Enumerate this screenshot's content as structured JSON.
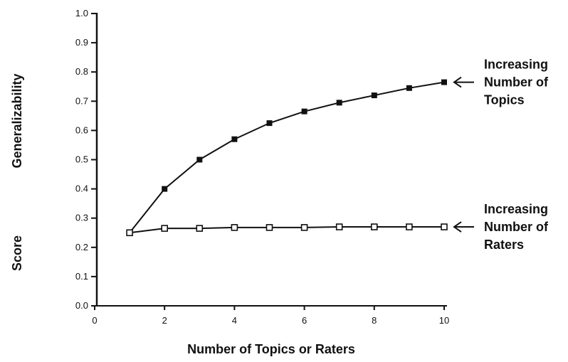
{
  "chart_data": {
    "type": "line",
    "title": "",
    "xlabel": "Number of Topics or Raters",
    "ylabel_parts": [
      "Score",
      "Generalizability"
    ],
    "xlim": [
      0,
      10
    ],
    "ylim": [
      0,
      1.0
    ],
    "x_ticks": [
      "0",
      "2",
      "4",
      "6",
      "8",
      "10"
    ],
    "y_ticks": [
      "0.0",
      "0.1",
      "0.2",
      "0.3",
      "0.4",
      "0.5",
      "0.6",
      "0.7",
      "0.8",
      "0.9",
      "1.0"
    ],
    "grid": false,
    "legend": "none",
    "x": [
      1,
      2,
      3,
      4,
      5,
      6,
      7,
      8,
      9,
      10
    ],
    "series": [
      {
        "name": "Increasing Number of Topics",
        "label_lines": [
          "Increasing",
          "Number of",
          "Topics"
        ],
        "values": [
          0.25,
          0.4,
          0.5,
          0.57,
          0.625,
          0.665,
          0.695,
          0.72,
          0.745,
          0.765
        ],
        "marker": "filled-square",
        "color": "#111111"
      },
      {
        "name": "Increasing Number of Raters",
        "label_lines": [
          "Increasing",
          "Number of",
          "Raters"
        ],
        "values": [
          0.25,
          0.265,
          0.265,
          0.268,
          0.268,
          0.268,
          0.27,
          0.27,
          0.27,
          0.27
        ],
        "marker": "open-square",
        "color": "#111111"
      }
    ]
  }
}
